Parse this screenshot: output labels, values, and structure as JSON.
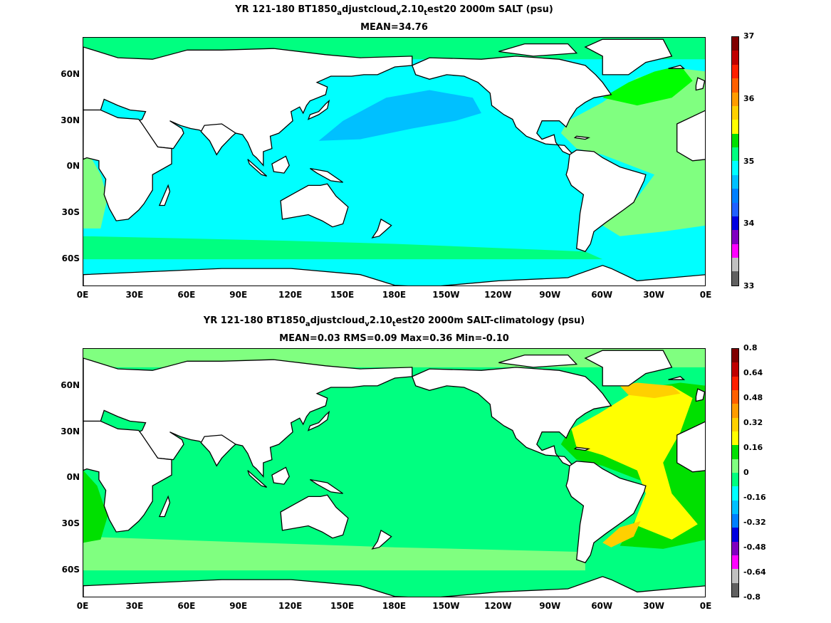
{
  "chart_data": [
    {
      "type": "heatmap",
      "title_pre": "YR 121-180 BT1850",
      "title_parts": [
        "a",
        "djustcloud",
        "v",
        "2.10",
        "t",
        "est20 2000m SALT (psu)"
      ],
      "subtitle": "MEAN=34.76",
      "xticks": [
        "0E",
        "30E",
        "60E",
        "90E",
        "120E",
        "150E",
        "180E",
        "150W",
        "120W",
        "90W",
        "60W",
        "30W",
        "0E"
      ],
      "yticks": [
        "60N",
        "30N",
        "0N",
        "30S",
        "60S"
      ],
      "colorbar": {
        "labels": [
          "37",
          "36",
          "35",
          "34",
          "33"
        ],
        "colors": [
          "#800000",
          "#c00000",
          "#ff2000",
          "#ff6000",
          "#ff9c00",
          "#ffd000",
          "#ffff00",
          "#00e000",
          "#00ff80",
          "#00ffff",
          "#00c0ff",
          "#0080ff",
          "#2060ff",
          "#0000e0",
          "#8000c0",
          "#ff00ff",
          "#c0c0c0",
          "#606060"
        ]
      },
      "fields": {
        "land": "#ffffff",
        "base": "#00ffff",
        "regions": [
          {
            "name": "north-pacific",
            "color": "#00c0ff"
          },
          {
            "name": "atlantic",
            "color": "#80ff80"
          },
          {
            "name": "north-atlantic",
            "color": "#00ff00"
          },
          {
            "name": "arctic",
            "color": "#00ff80"
          },
          {
            "name": "southern-ocean",
            "color": "#00ff80"
          }
        ]
      }
    },
    {
      "type": "heatmap",
      "title_pre": "YR 121-180 BT1850",
      "title_parts": [
        "a",
        "djustcloud",
        "v",
        "2.10",
        "t",
        "est20 2000m SALT-climatology (psu)"
      ],
      "subtitle": "MEAN=0.03   RMS=0.09   Max=0.36   Min=-0.10",
      "xticks": [
        "0E",
        "30E",
        "60E",
        "90E",
        "120E",
        "150E",
        "180E",
        "150W",
        "120W",
        "90W",
        "60W",
        "30W",
        "0E"
      ],
      "yticks": [
        "60N",
        "30N",
        "0N",
        "30S",
        "60S"
      ],
      "colorbar": {
        "labels": [
          "0.8",
          "0.64",
          "0.48",
          "0.32",
          "0.16",
          "0",
          "-0.16",
          "-0.32",
          "-0.48",
          "-0.64",
          "-0.8"
        ],
        "colors": [
          "#800000",
          "#c00000",
          "#ff2000",
          "#ff6000",
          "#ff9c00",
          "#ffd000",
          "#ffff00",
          "#00e000",
          "#80ff80",
          "#00ff80",
          "#00ffff",
          "#00c0ff",
          "#0080ff",
          "#0000e0",
          "#8000c0",
          "#ff00ff",
          "#c0c0c0",
          "#606060"
        ]
      },
      "fields": {
        "land": "#ffffff",
        "base": "#00ff80",
        "regions": [
          {
            "name": "southern-band",
            "color": "#80ff80"
          },
          {
            "name": "atlantic-yellow",
            "color": "#ffff00"
          },
          {
            "name": "atlantic-orange",
            "color": "#ffd000"
          },
          {
            "name": "south-atlantic-green",
            "color": "#00e000"
          }
        ]
      }
    }
  ]
}
